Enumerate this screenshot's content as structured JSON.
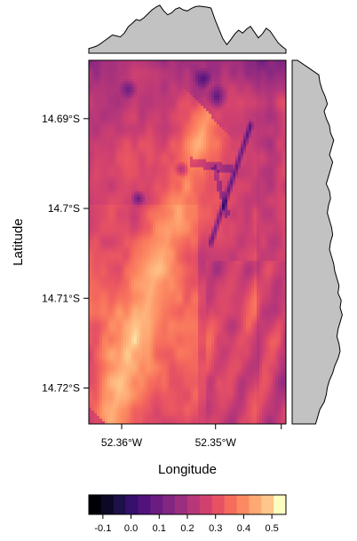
{
  "chart_data": {
    "type": "heatmap",
    "title": "",
    "xlabel": "Longitude",
    "ylabel": "Latitude",
    "x_ticks": [
      {
        "value": -52.36,
        "label": "52.36°W"
      },
      {
        "value": -52.35,
        "label": "52.35°W"
      }
    ],
    "y_ticks": [
      {
        "value": -14.69,
        "label": "14.69°S"
      },
      {
        "value": -14.7,
        "label": "14.7°S"
      },
      {
        "value": -14.71,
        "label": "14.71°S"
      },
      {
        "value": -14.72,
        "label": "14.72°S"
      }
    ],
    "xlim": [
      -52.3635,
      -52.3425
    ],
    "ylim": [
      -14.724,
      -14.6835
    ],
    "value_range": [
      -0.15,
      0.55
    ],
    "colorbar": {
      "ticks": [
        {
          "value": -0.1,
          "label": "-0.1"
        },
        {
          "value": 0.0,
          "label": "0.0"
        },
        {
          "value": 0.1,
          "label": "0.1"
        },
        {
          "value": 0.2,
          "label": "0.2"
        },
        {
          "value": 0.3,
          "label": "0.3"
        },
        {
          "value": 0.4,
          "label": "0.4"
        },
        {
          "value": 0.5,
          "label": "0.5"
        }
      ],
      "colors": [
        "#000004",
        "#0c0826",
        "#1d1147",
        "#36106b",
        "#51127c",
        "#6a1c81",
        "#832681",
        "#9c2e7f",
        "#b73779",
        "#d0416f",
        "#e75263",
        "#f56b5c",
        "#fc8961",
        "#fea873",
        "#fec68a",
        "#fcfdbf"
      ]
    },
    "marginal_top": [
      0.1,
      0.12,
      0.15,
      0.2,
      0.26,
      0.32,
      0.38,
      0.36,
      0.34,
      0.42,
      0.55,
      0.62,
      0.7,
      0.68,
      0.74,
      0.82,
      0.9,
      0.96,
      1.0,
      0.88,
      0.8,
      0.84,
      0.92,
      0.95,
      0.9,
      0.88,
      0.93,
      0.97,
      0.98,
      0.97,
      0.96,
      0.94,
      0.7,
      0.5,
      0.3,
      0.18,
      0.28,
      0.4,
      0.48,
      0.42,
      0.5,
      0.56,
      0.44,
      0.32,
      0.4,
      0.52,
      0.46,
      0.34,
      0.22,
      0.14,
      0.08
    ],
    "marginal_right": [
      0.1,
      0.3,
      0.5,
      0.52,
      0.56,
      0.62,
      0.66,
      0.6,
      0.64,
      0.7,
      0.72,
      0.78,
      0.74,
      0.7,
      0.76,
      0.72,
      0.68,
      0.64,
      0.7,
      0.72,
      0.68,
      0.66,
      0.7,
      0.74,
      0.76,
      0.72,
      0.7,
      0.74,
      0.78,
      0.8,
      0.84,
      0.88,
      0.86,
      0.92,
      0.9,
      0.94,
      0.9,
      0.86,
      0.84,
      0.88,
      0.9,
      0.86,
      0.8,
      0.76,
      0.7,
      0.66,
      0.64,
      0.6,
      0.52,
      0.48,
      0.44
    ]
  }
}
